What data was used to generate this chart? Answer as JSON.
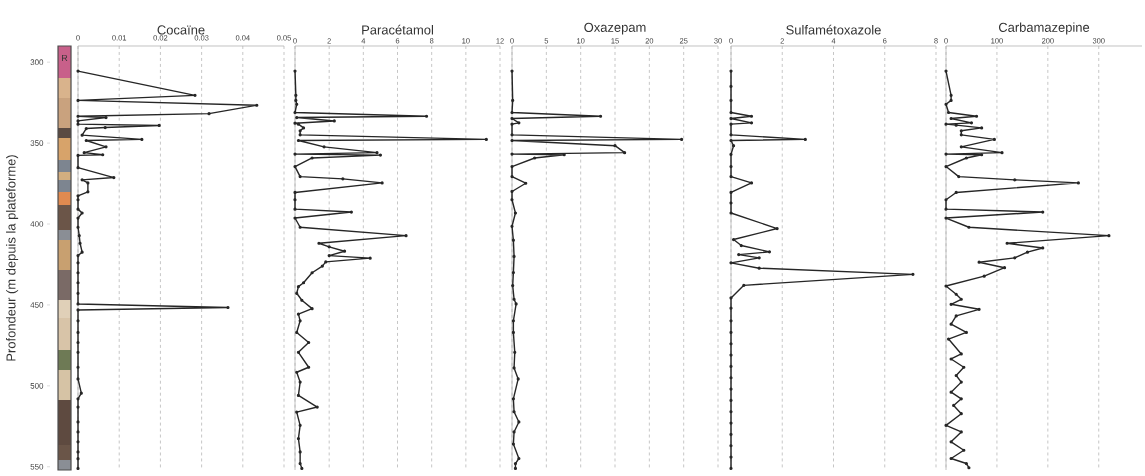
{
  "chart_data": [
    {
      "type": "line",
      "orientation": "horizontal",
      "title": "Cocaïne",
      "ylabel": "Profondeur (m depuis la plateforme)",
      "annotations": [
        "R"
      ],
      "color": "#262626",
      "marker": "circle",
      "grid": "x",
      "x": [
        305.5,
        320.5,
        323.6,
        326.6,
        331.8,
        333.4,
        334.2,
        336.3,
        338.3,
        339.1,
        340.4,
        341.0,
        345.1,
        347.7,
        348.4,
        352.3,
        355.9,
        357.2,
        357.6,
        365.2,
        371.3,
        372.7,
        374.6,
        380.1,
        382.6,
        385.0,
        390.8,
        393.2,
        396.3,
        402.0,
        407.2,
        411.9,
        417.4,
        419.5,
        424.0,
        430.1,
        436.3,
        442.8,
        449.4,
        451.6,
        453.1,
        459.8,
        467.0,
        473.2,
        479.3,
        488.5,
        495.7,
        504.5,
        508.0,
        513.1,
        522.3,
        528.5,
        534.6,
        540.8,
        545.0,
        551.0
      ],
      "values": [
        0,
        0.0284,
        0,
        0.0434,
        0.0318,
        0,
        0.0068,
        0,
        0,
        0.0197,
        0.0066,
        0.002,
        0.001,
        0.0155,
        0.002,
        0.0068,
        0.0015,
        0.006,
        0,
        0,
        0.0087,
        0.001,
        0.0024,
        0.0024,
        0,
        0,
        0,
        0.001,
        0,
        0,
        0.0003,
        0.0005,
        0.001,
        0,
        0,
        0,
        0,
        0,
        0,
        0.0364,
        0,
        0,
        0,
        0,
        0,
        0,
        0,
        0.0008,
        0,
        0,
        0,
        0,
        0,
        0,
        0,
        0
      ],
      "xlim": [
        0,
        0.05
      ],
      "xticks": [
        0,
        0.01,
        0.02,
        0.03,
        0.04,
        0.05
      ],
      "ylim": [
        552,
        290
      ],
      "yticks": [
        300,
        350,
        400,
        450,
        500,
        550
      ]
    },
    {
      "type": "line",
      "orientation": "horizontal",
      "title": "Paracétamol",
      "color": "#262626",
      "marker": "circle",
      "grid": "x",
      "tick_labels": "x",
      "x": [
        305.5,
        320.5,
        323.6,
        326.0,
        331.1,
        333.4,
        334.2,
        336.3,
        337.7,
        338.3,
        340.6,
        342.4,
        344.9,
        347.7,
        348.4,
        352.3,
        355.9,
        356.8,
        357.4,
        359.2,
        364.5,
        370.7,
        372.1,
        374.6,
        380.5,
        385.0,
        390.8,
        392.6,
        396.3,
        402.0,
        407.2,
        411.9,
        414.1,
        416.8,
        419.5,
        421.1,
        423.4,
        426.0,
        430.1,
        436.3,
        438.7,
        442.8,
        447.1,
        452.3,
        455.7,
        459.8,
        467.0,
        473.2,
        479.3,
        488.5,
        491.6,
        497.7,
        505.9,
        513.1,
        516.2,
        524.4,
        532.6,
        540.8,
        548.0,
        551.0
      ],
      "values": [
        0,
        0.05,
        0.05,
        0.1,
        0,
        7.7,
        0.1,
        2.3,
        0,
        0.2,
        0.5,
        0.3,
        0.3,
        11.2,
        0.2,
        1.7,
        4.8,
        0,
        5.0,
        1.0,
        0,
        0.3,
        2.8,
        5.1,
        0,
        0,
        0,
        3.3,
        0,
        0.3,
        6.5,
        1.4,
        2.0,
        2.9,
        2.0,
        4.4,
        1.8,
        1.6,
        1.0,
        0.5,
        0.2,
        0.1,
        0.4,
        1.0,
        0.2,
        0.3,
        0.1,
        0.8,
        0.2,
        0.8,
        0.1,
        0.3,
        0.2,
        1.3,
        0.1,
        0.3,
        0.2,
        0.3,
        0.3,
        0.4
      ],
      "xlim": [
        0,
        12
      ],
      "xticks": [
        0,
        2,
        4,
        6,
        8,
        10,
        12
      ],
      "ylim": [
        552,
        290
      ]
    },
    {
      "type": "line",
      "orientation": "horizontal",
      "title": "Oxazepam",
      "color": "#262626",
      "marker": "circle",
      "grid": "x",
      "tick_labels": "x",
      "x": [
        305.5,
        323.6,
        331.1,
        333.4,
        334.8,
        337.5,
        338.3,
        344.9,
        347.7,
        348.4,
        351.6,
        355.9,
        356.8,
        357.2,
        359.2,
        364.5,
        370.7,
        374.8,
        379.9,
        385.0,
        393.2,
        401.4,
        410.0,
        420.0,
        430.0,
        438.0,
        446.5,
        449.4,
        459.8,
        467.0,
        479.3,
        488.9,
        495.7,
        508.0,
        516.0,
        522.3,
        528.5,
        536.0,
        544.9,
        548.0,
        551.0
      ],
      "values": [
        0,
        0.1,
        0,
        12.9,
        0,
        1.0,
        0,
        0,
        24.7,
        0,
        15.0,
        16.4,
        0,
        7.6,
        3.3,
        0,
        0,
        2.0,
        0,
        0,
        0.5,
        0,
        0.2,
        0.3,
        0.2,
        0.1,
        0.3,
        0.6,
        0.2,
        0.2,
        0.4,
        0.3,
        0.9,
        0.2,
        0.3,
        1.0,
        0.3,
        0.2,
        1.0,
        0.5,
        0.5
      ],
      "xlim": [
        0,
        30
      ],
      "xticks": [
        0,
        5,
        10,
        15,
        20,
        25,
        30
      ],
      "ylim": [
        552,
        290
      ]
    },
    {
      "type": "line",
      "orientation": "horizontal",
      "title": "Sulfamétoxazole",
      "color": "#262626",
      "marker": "circle",
      "grid": "x",
      "tick_labels": "x",
      "x": [
        305.5,
        315.0,
        323.6,
        331.1,
        333.4,
        334.8,
        337.5,
        338.3,
        344.9,
        347.7,
        348.4,
        351.6,
        357.0,
        364.5,
        370.7,
        374.6,
        380.5,
        387.0,
        393.2,
        402.8,
        409.6,
        413.3,
        417.2,
        418.9,
        420.9,
        424.0,
        427.3,
        431.1,
        437.9,
        445.7,
        452.0,
        459.8,
        467.0,
        474.0,
        481.0,
        488.0,
        495.0,
        502.0,
        509.0,
        516.0,
        523.0,
        530.0,
        537.0,
        544.0,
        551.0
      ],
      "values": [
        0,
        0,
        0,
        0,
        0.8,
        0,
        0.8,
        0,
        0,
        2.9,
        0,
        0.1,
        0,
        0,
        0,
        0.8,
        0,
        0,
        0,
        1.8,
        0.1,
        0.4,
        1.5,
        0.3,
        1.1,
        0,
        1.1,
        7.1,
        0.5,
        0,
        0,
        0,
        0,
        0,
        0,
        0,
        0,
        0,
        0,
        0,
        0,
        0,
        0,
        0,
        0
      ],
      "xlim": [
        0,
        8
      ],
      "xticks": [
        0,
        2,
        4,
        6,
        8
      ],
      "ylim": [
        552,
        290
      ]
    },
    {
      "type": "line",
      "orientation": "horizontal",
      "title": "Carbamazepine",
      "color": "#262626",
      "marker": "circle",
      "grid": "x",
      "tick_labels": "x",
      "x": [
        305.5,
        320.5,
        323.6,
        326.0,
        331.1,
        333.4,
        334.8,
        337.5,
        338.3,
        338.9,
        340.6,
        342.4,
        344.9,
        347.7,
        352.3,
        355.9,
        356.8,
        357.2,
        359.2,
        364.5,
        370.7,
        372.7,
        374.6,
        380.5,
        385.0,
        390.8,
        392.6,
        396.3,
        402.0,
        407.2,
        411.9,
        414.8,
        417.4,
        420.9,
        423.6,
        427.0,
        432.2,
        438.3,
        443.4,
        446.5,
        449.6,
        452.7,
        456.8,
        461.9,
        467.0,
        471.1,
        480.3,
        483.4,
        488.5,
        493.6,
        497.7,
        503.9,
        508.0,
        512.1,
        517.2,
        524.4,
        528.5,
        534.6,
        539.8,
        544.9,
        548.0,
        550.6
      ],
      "values": [
        0,
        10,
        10,
        0,
        5,
        60,
        10,
        50,
        0,
        20,
        70,
        30,
        30,
        95,
        30,
        110,
        0,
        70,
        40,
        0,
        25,
        135,
        260,
        20,
        0,
        0,
        190,
        0,
        45,
        320,
        120,
        190,
        160,
        135,
        65,
        115,
        75,
        0,
        20,
        30,
        10,
        65,
        20,
        10,
        40,
        5,
        30,
        10,
        35,
        20,
        30,
        10,
        30,
        15,
        30,
        0,
        30,
        10,
        35,
        10,
        40,
        45
      ],
      "xlim": [
        0,
        385
      ],
      "xticks": [
        0,
        100,
        200,
        300
      ],
      "ylim": [
        552,
        290
      ]
    }
  ]
}
